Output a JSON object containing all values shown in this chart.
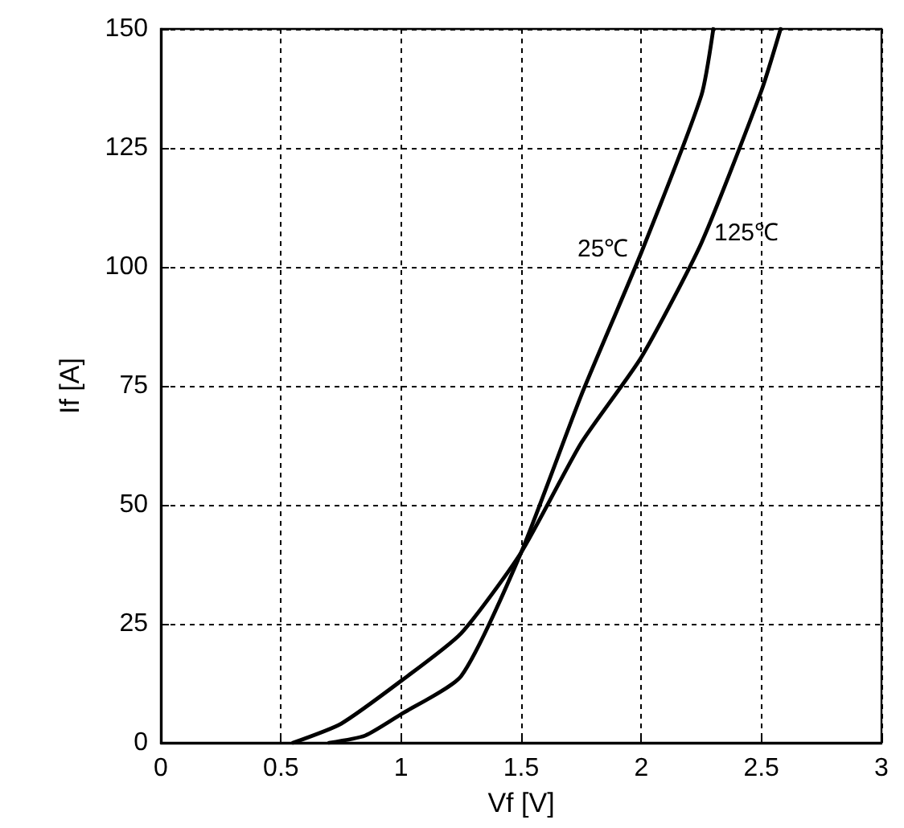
{
  "chart_data": {
    "type": "line",
    "xlabel": "Vf [V]",
    "ylabel": "If [A]",
    "xlim": [
      0,
      3
    ],
    "xticks": [
      0,
      0.5,
      1,
      1.5,
      2,
      2.5,
      3
    ],
    "ylim": [
      0,
      150
    ],
    "yticks": [
      0,
      25,
      50,
      75,
      100,
      125,
      150
    ],
    "grid": true,
    "legend": false,
    "marker": "none",
    "line_style": "solid",
    "series": [
      {
        "name": "25℃",
        "color": "#000000",
        "x": [
          0.7,
          0.85,
          1.0,
          1.25,
          1.5,
          1.75,
          2.0,
          2.25,
          2.3
        ],
        "values": [
          0,
          1.5,
          6,
          14,
          40,
          73,
          103,
          136,
          150
        ]
      },
      {
        "name": "125℃",
        "color": "#000000",
        "x": [
          0.55,
          0.75,
          1.0,
          1.25,
          1.5,
          1.75,
          2.0,
          2.25,
          2.5,
          2.58
        ],
        "values": [
          0,
          4,
          13,
          23,
          40,
          63,
          81,
          105,
          137,
          150
        ]
      }
    ]
  }
}
